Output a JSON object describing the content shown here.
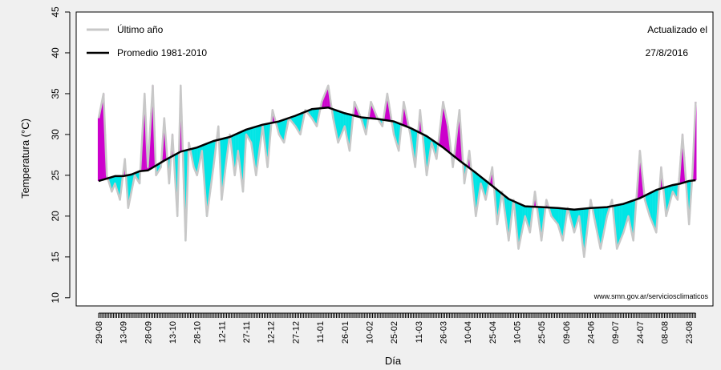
{
  "chart_data": {
    "type": "area",
    "xlabel": "Día",
    "ylabel": "Temperatura (°C)",
    "ylim": [
      9,
      45
    ],
    "yticks": [
      10,
      15,
      20,
      25,
      30,
      35,
      40,
      45
    ],
    "x_tick_labels": [
      "29-08",
      "13-09",
      "28-09",
      "13-10",
      "28-10",
      "12-11",
      "27-11",
      "12-12",
      "27-12",
      "11-01",
      "26-01",
      "10-02",
      "25-02",
      "11-03",
      "26-03",
      "10-04",
      "25-04",
      "10-05",
      "25-05",
      "09-06",
      "24-06",
      "09-07",
      "24-07",
      "08-08",
      "23-08"
    ],
    "days_between_ticks": 15,
    "total_days": 365,
    "legend": {
      "position": "top-left",
      "items": [
        {
          "label": "Último año",
          "color": "#c8c8c8"
        },
        {
          "label": "Promedio 1981-2010",
          "color": "#000000"
        }
      ]
    },
    "update_text": [
      "Actualizado el",
      "27/8/2016"
    ],
    "source_text": "www.smn.gov.ar/serviciosclimaticos",
    "colors": {
      "above": "#cc00cc",
      "below": "#00e5e5",
      "last_year": "#c8c8c8",
      "average": "#000000"
    },
    "series": [
      {
        "name": "Promedio 1981-2010",
        "key": "average",
        "x": [
          0,
          10,
          15,
          20,
          25,
          30,
          35,
          40,
          50,
          60,
          70,
          80,
          90,
          100,
          110,
          120,
          130,
          135,
          140,
          150,
          160,
          170,
          180,
          190,
          200,
          210,
          220,
          230,
          240,
          250,
          260,
          270,
          280,
          290,
          300,
          310,
          320,
          330,
          340,
          350,
          355,
          360,
          364
        ],
        "y": [
          24.3,
          24.9,
          24.9,
          25.1,
          25.5,
          25.6,
          26.2,
          26.8,
          27.9,
          28.4,
          29.2,
          29.7,
          30.6,
          31.2,
          31.6,
          32.3,
          33.1,
          33.2,
          33.3,
          32.6,
          32.1,
          31.9,
          31.6,
          30.8,
          29.8,
          28.4,
          26.8,
          25.3,
          23.7,
          22.1,
          21.2,
          21.1,
          21.0,
          20.8,
          21.0,
          21.1,
          21.5,
          22.2,
          23.2,
          23.8,
          24.0,
          24.3,
          24.4
        ]
      },
      {
        "name": "Último año",
        "key": "last_year",
        "x": [
          0,
          3,
          5,
          8,
          10,
          13,
          16,
          18,
          22,
          25,
          28,
          30,
          33,
          35,
          38,
          40,
          43,
          45,
          48,
          50,
          53,
          55,
          58,
          60,
          63,
          66,
          70,
          73,
          75,
          78,
          80,
          83,
          85,
          88,
          90,
          93,
          96,
          100,
          103,
          106,
          110,
          113,
          116,
          120,
          123,
          126,
          130,
          133,
          136,
          140,
          143,
          146,
          150,
          153,
          156,
          160,
          163,
          166,
          170,
          173,
          176,
          180,
          183,
          186,
          190,
          193,
          196,
          200,
          203,
          206,
          210,
          213,
          216,
          220,
          223,
          226,
          230,
          233,
          236,
          240,
          243,
          246,
          250,
          253,
          256,
          260,
          263,
          266,
          270,
          273,
          276,
          280,
          283,
          286,
          290,
          293,
          296,
          300,
          303,
          306,
          310,
          313,
          316,
          320,
          323,
          326,
          330,
          333,
          336,
          340,
          343,
          346,
          350,
          353,
          356,
          360,
          362,
          364
        ],
        "y": [
          32,
          35,
          25,
          23,
          24,
          22,
          27,
          21,
          25,
          24,
          35,
          26,
          36,
          25,
          26,
          32,
          24,
          30,
          20,
          36,
          17,
          29,
          26,
          25,
          28,
          20,
          26,
          31,
          22,
          27,
          30,
          25,
          28,
          23,
          30,
          29,
          25,
          31,
          26,
          33,
          30,
          29,
          32,
          31,
          30,
          33,
          32,
          31,
          34,
          36,
          32,
          29,
          31,
          28,
          34,
          32,
          30,
          34,
          32,
          31,
          35,
          30,
          28,
          34,
          30,
          26,
          33,
          25,
          29,
          27,
          34,
          31,
          26,
          33,
          24,
          28,
          20,
          24,
          22,
          26,
          19,
          23,
          17,
          22,
          16,
          20,
          18,
          23,
          17,
          22,
          20,
          19,
          17,
          21,
          18,
          20,
          15,
          22,
          19,
          16,
          20,
          22,
          16,
          18,
          20,
          17,
          28,
          22,
          20,
          18,
          26,
          20,
          23,
          22,
          30,
          19,
          25,
          34
        ]
      }
    ]
  }
}
